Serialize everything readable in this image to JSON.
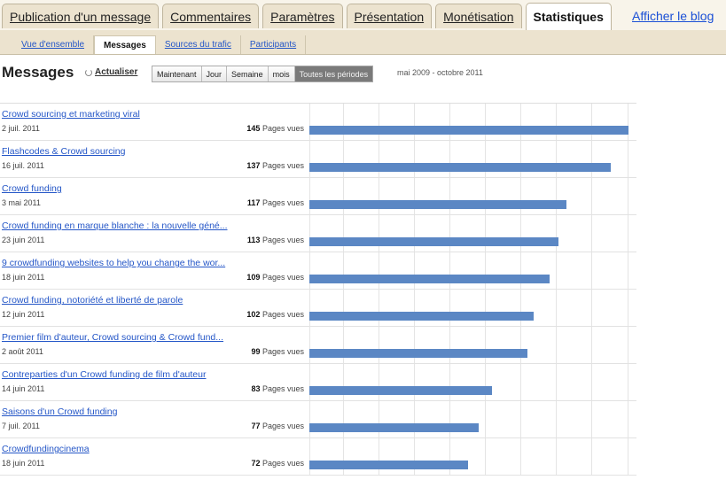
{
  "tabs": [
    {
      "label": "Publication d'un message",
      "active": false
    },
    {
      "label": "Commentaires",
      "active": false
    },
    {
      "label": "Paramètres",
      "active": false
    },
    {
      "label": "Présentation",
      "active": false
    },
    {
      "label": "Monétisation",
      "active": false
    },
    {
      "label": "Statistiques",
      "active": true
    }
  ],
  "blog_link": "Afficher le blog",
  "subtabs": [
    {
      "label": "Vue d'ensemble",
      "active": false
    },
    {
      "label": "Messages",
      "active": true
    },
    {
      "label": "Sources du trafic",
      "active": false
    },
    {
      "label": "Participants",
      "active": false
    }
  ],
  "page_title": "Messages",
  "refresh_label": "Actualiser",
  "periods": [
    {
      "label": "Maintenant",
      "active": false
    },
    {
      "label": "Jour",
      "active": false
    },
    {
      "label": "Semaine",
      "active": false
    },
    {
      "label": "mois",
      "active": false
    },
    {
      "label": "Toutes les périodes",
      "active": true
    }
  ],
  "date_range": "mai 2009 - octobre 2011",
  "views_unit": "Pages vues",
  "accent_color": "#5b87c4",
  "chart_data": {
    "type": "bar",
    "categories": [
      "Crowd sourcing et marketing viral",
      "Flashcodes & Crowd sourcing",
      "Crowd funding",
      "Crowd funding en marque blanche : la nouvelle géné...",
      "9 crowdfunding websites to help you change the wor...",
      "Crowd funding, notoriété et liberté de parole",
      "Premier film d'auteur, Crowd sourcing & Crowd fund...",
      "Contreparties d'un Crowd funding de film d'auteur",
      "Saisons d'un Crowd funding",
      "Crowdfundingcinema"
    ],
    "dates": [
      "2 juil. 2011",
      "16 juil. 2011",
      "3 mai 2011",
      "23 juin 2011",
      "18 juin 2011",
      "12 juin 2011",
      "2 août 2011",
      "14 juin 2011",
      "7 juil. 2011",
      "18 juin 2011"
    ],
    "values": [
      145,
      137,
      117,
      113,
      109,
      102,
      99,
      83,
      77,
      72
    ],
    "xlim": [
      0,
      145
    ]
  }
}
